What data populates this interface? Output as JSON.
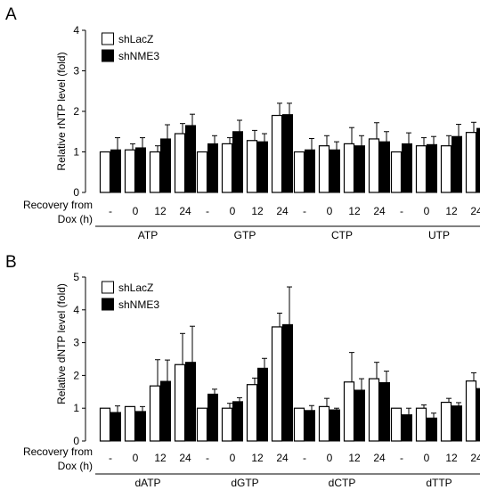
{
  "chart_data": [
    {
      "type": "bar",
      "panel_label": "A",
      "ylabel": "Relative rNTP level (fold)",
      "ylim": [
        0,
        4
      ],
      "yticks": [
        0,
        1,
        2,
        3,
        4
      ],
      "xlabel_lines": [
        "Recovery from",
        "Dox (h)"
      ],
      "timepoints": [
        "-",
        "0",
        "12",
        "24"
      ],
      "groups": [
        "ATP",
        "GTP",
        "CTP",
        "UTP"
      ],
      "legend": {
        "placement": "top-left"
      },
      "series": [
        {
          "name": "shLacZ",
          "color": "#ffffff",
          "values": [
            1.0,
            1.05,
            1.0,
            1.45,
            1.0,
            1.2,
            1.28,
            1.9,
            1.0,
            1.15,
            1.2,
            1.32,
            1.0,
            1.15,
            1.15,
            1.48
          ],
          "errors": [
            0.0,
            0.15,
            0.15,
            0.25,
            0.0,
            0.15,
            0.25,
            0.3,
            0.0,
            0.25,
            0.4,
            0.4,
            0.0,
            0.2,
            0.25,
            0.25
          ]
        },
        {
          "name": "shNME3",
          "color": "#000000",
          "values": [
            1.05,
            1.1,
            1.32,
            1.65,
            1.2,
            1.5,
            1.25,
            1.92,
            1.05,
            1.05,
            1.15,
            1.25,
            1.2,
            1.18,
            1.38,
            1.58
          ],
          "errors": [
            0.3,
            0.25,
            0.35,
            0.28,
            0.2,
            0.28,
            0.2,
            0.28,
            0.28,
            0.2,
            0.25,
            0.25,
            0.27,
            0.2,
            0.3,
            0.2
          ]
        }
      ]
    },
    {
      "type": "bar",
      "panel_label": "B",
      "ylabel": "Relative dNTP level (fold)",
      "ylim": [
        0,
        5
      ],
      "yticks": [
        0,
        1,
        2,
        3,
        4,
        5
      ],
      "xlabel_lines": [
        "Recovery from",
        "Dox (h)"
      ],
      "timepoints": [
        "-",
        "0",
        "12",
        "24"
      ],
      "groups": [
        "dATP",
        "dGTP",
        "dCTP",
        "dTTP"
      ],
      "legend": {
        "placement": "top-left"
      },
      "series": [
        {
          "name": "shLacZ",
          "color": "#ffffff",
          "values": [
            1.0,
            1.05,
            1.68,
            2.33,
            1.0,
            1.0,
            1.72,
            3.48,
            1.0,
            1.05,
            1.8,
            1.9,
            1.0,
            1.0,
            1.18,
            1.83
          ],
          "errors": [
            0.0,
            0.0,
            0.8,
            0.95,
            0.0,
            0.15,
            0.2,
            0.42,
            0.0,
            0.25,
            0.9,
            0.5,
            0.0,
            0.1,
            0.12,
            0.25
          ]
        },
        {
          "name": "shNME3",
          "color": "#000000",
          "values": [
            0.87,
            0.9,
            1.82,
            2.4,
            1.43,
            1.2,
            2.22,
            3.55,
            0.93,
            0.95,
            1.55,
            1.78,
            0.8,
            0.7,
            1.07,
            1.6
          ],
          "errors": [
            0.2,
            0.15,
            0.65,
            1.1,
            0.15,
            0.12,
            0.3,
            1.15,
            0.15,
            0.05,
            0.35,
            0.35,
            0.2,
            0.15,
            0.1,
            0.05
          ]
        }
      ]
    }
  ]
}
